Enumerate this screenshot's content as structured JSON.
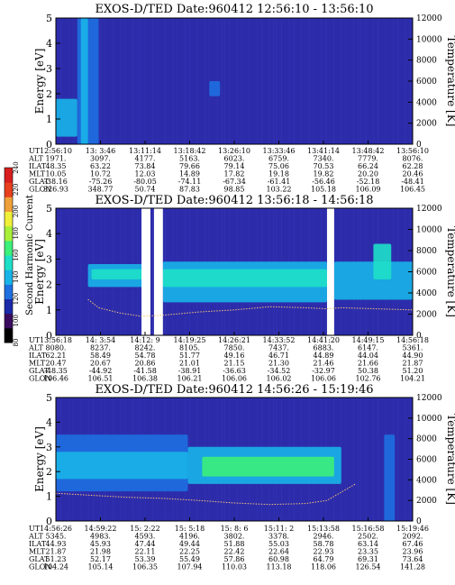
{
  "colors": {
    "background_spectrogram": "#2c2caa",
    "data_gap": "#ffffff",
    "temperature_trace": "#f4c07a",
    "colorbar_stops": [
      "#000000",
      "#3a0a5e",
      "#1a2aa8",
      "#1e6fe0",
      "#18b4e8",
      "#1ee0c8",
      "#3cf07a",
      "#a8f03a",
      "#f0f03a",
      "#f0a03a",
      "#e8401e",
      "#d81e1e"
    ]
  },
  "colorbar": {
    "label": "Second Harmonic Current",
    "ticks": [
      "80",
      "100",
      "120",
      "140",
      "160",
      "180",
      "200",
      "220",
      "240"
    ]
  },
  "chart_data": [
    {
      "type": "heatmap",
      "title": "EXOS-D/TED   Date:960412   12:56:10 - 13:56:10",
      "ylabel": "Energy [eV]",
      "y2label": "Temperature [K]",
      "ylim": [
        0,
        5
      ],
      "y2lim": [
        0,
        12000
      ],
      "yticks": [
        "0",
        "1",
        "2",
        "3",
        "4",
        "5"
      ],
      "y2ticks": [
        "0",
        "2000",
        "4000",
        "6000",
        "8000",
        "10000",
        "12000"
      ],
      "bands": [
        {
          "t0": 0.0,
          "t1": 0.06,
          "e0": 0.3,
          "e1": 1.8,
          "level": 5
        },
        {
          "t0": 0.06,
          "t1": 0.12,
          "e0": 0.0,
          "e1": 5.0,
          "level": 4
        },
        {
          "t0": 0.43,
          "t1": 0.46,
          "e0": 1.9,
          "e1": 2.5,
          "level": 4
        },
        {
          "t0": 0.07,
          "t1": 0.09,
          "e0": 0.0,
          "e1": 5.0,
          "level": 5
        }
      ],
      "gaps": [],
      "temperature": [],
      "rows": [
        {
          "name": "UT",
          "values": [
            "12:56:10",
            "13: 3:46",
            "13:11:14",
            "13:18:42",
            "13:26:10",
            "13:33:46",
            "13:41:14",
            "13:48:42",
            "13:56:10"
          ]
        },
        {
          "name": "ALT",
          "values": [
            "1971.",
            "3097.",
            "4177.",
            "5163.",
            "6023.",
            "6759.",
            "7340.",
            "7779.",
            "8076."
          ]
        },
        {
          "name": "ILAT",
          "values": [
            "48.35",
            "63.22",
            "73.84",
            "79.66",
            "79.14",
            "75.06",
            "70.53",
            "66.24",
            "62.28"
          ]
        },
        {
          "name": "MLT",
          "values": [
            "10.05",
            "10.72",
            "12.03",
            "14.89",
            "17.82",
            "19.18",
            "19.82",
            "20.20",
            "20.46"
          ]
        },
        {
          "name": "GLAT",
          "values": [
            "-38.16",
            "-75.26",
            "-80.05",
            "-74.11",
            "-67.34",
            "-61.41",
            "-56.46",
            "-52.18",
            "-48.41"
          ]
        },
        {
          "name": "GLON",
          "values": [
            "326.93",
            "348.77",
            "50.74",
            "87.83",
            "98.85",
            "103.22",
            "105.18",
            "106.09",
            "106.45"
          ]
        }
      ]
    },
    {
      "type": "heatmap",
      "title": "EXOS-D/TED   Date:960412   13:56:18 - 14:56:18",
      "ylabel": "Energy [eV]",
      "y2label": "Temperature [K]",
      "ylim": [
        0,
        5
      ],
      "y2lim": [
        0,
        12000
      ],
      "yticks": [
        "0",
        "1",
        "2",
        "3",
        "4",
        "5"
      ],
      "y2ticks": [
        "0",
        "2000",
        "4000",
        "6000",
        "8000",
        "10000",
        "12000"
      ],
      "bands": [
        {
          "t0": 0.09,
          "t1": 0.25,
          "e0": 1.9,
          "e1": 2.8,
          "level": 5
        },
        {
          "t0": 0.1,
          "t1": 0.25,
          "e0": 2.2,
          "e1": 2.6,
          "level": 6
        },
        {
          "t0": 0.3,
          "t1": 0.76,
          "e0": 1.3,
          "e1": 2.9,
          "level": 5
        },
        {
          "t0": 0.3,
          "t1": 0.76,
          "e0": 1.9,
          "e1": 2.6,
          "level": 6
        },
        {
          "t0": 0.78,
          "t1": 1.0,
          "e0": 1.4,
          "e1": 2.9,
          "level": 5
        },
        {
          "t0": 0.89,
          "t1": 0.94,
          "e0": 2.2,
          "e1": 3.6,
          "level": 6
        }
      ],
      "gaps": [
        [
          0.24,
          0.265
        ],
        [
          0.275,
          0.3
        ],
        [
          0.76,
          0.78
        ]
      ],
      "temperature": [
        [
          0.09,
          3400
        ],
        [
          0.12,
          2600
        ],
        [
          0.18,
          2100
        ],
        [
          0.24,
          1800
        ],
        [
          0.3,
          1900
        ],
        [
          0.4,
          2200
        ],
        [
          0.5,
          2400
        ],
        [
          0.6,
          2700
        ],
        [
          0.7,
          2600
        ],
        [
          0.76,
          2500
        ],
        [
          0.8,
          2600
        ],
        [
          0.9,
          2500
        ],
        [
          1.0,
          2400
        ]
      ],
      "rows": [
        {
          "name": "UT",
          "values": [
            "13:56:18",
            "14: 3:54",
            "14:12: 9",
            "14:19:25",
            "14:26:21",
            "14:33:52",
            "14:41:20",
            "14:49:15",
            "14:56:18"
          ]
        },
        {
          "name": "ALT",
          "values": [
            "8080.",
            "8237.",
            "8242.",
            "8105.",
            "7850.",
            "7437.",
            "6883.",
            "6147.",
            "5361."
          ]
        },
        {
          "name": "ILAT",
          "values": [
            "62.21",
            "58.49",
            "54.78",
            "51.77",
            "49.16",
            "46.71",
            "44.89",
            "44.04",
            "44.90"
          ]
        },
        {
          "name": "MLT",
          "values": [
            "20.47",
            "20.67",
            "20.86",
            "21.01",
            "21.15",
            "21.30",
            "21.46",
            "21.66",
            "21.87"
          ]
        },
        {
          "name": "GLAT",
          "values": [
            "-48.35",
            "-44.92",
            "-41.58",
            "-38.91",
            "-36.63",
            "-34.52",
            "-32.97",
            "50.38",
            "51.20"
          ]
        },
        {
          "name": "GLON",
          "values": [
            "106.46",
            "106.51",
            "106.38",
            "106.21",
            "106.06",
            "106.02",
            "106.06",
            "102.76",
            "104.21"
          ]
        }
      ]
    },
    {
      "type": "heatmap",
      "title": "EXOS-D/TED   Date:960412   14:56:26 - 15:19:46",
      "ylabel": "Energy [eV]",
      "y2label": "Temperature [K]",
      "ylim": [
        0,
        5
      ],
      "y2lim": [
        0,
        12000
      ],
      "yticks": [
        "0",
        "1",
        "2",
        "3",
        "4",
        "5"
      ],
      "y2ticks": [
        "0",
        "2000",
        "4000",
        "6000",
        "8000",
        "10000",
        "12000"
      ],
      "bands": [
        {
          "t0": 0.0,
          "t1": 0.37,
          "e0": 1.2,
          "e1": 3.5,
          "level": 4
        },
        {
          "t0": 0.0,
          "t1": 0.37,
          "e0": 1.7,
          "e1": 2.8,
          "level": 5
        },
        {
          "t0": 0.37,
          "t1": 0.8,
          "e0": 1.5,
          "e1": 3.0,
          "level": 5
        },
        {
          "t0": 0.41,
          "t1": 0.78,
          "e0": 1.8,
          "e1": 2.6,
          "level": 7
        },
        {
          "t0": 0.92,
          "t1": 0.95,
          "e0": 0.0,
          "e1": 3.5,
          "level": 4
        }
      ],
      "gaps": [],
      "temperature": [
        [
          0.0,
          2700
        ],
        [
          0.1,
          2500
        ],
        [
          0.2,
          2300
        ],
        [
          0.3,
          2200
        ],
        [
          0.4,
          2000
        ],
        [
          0.5,
          1750
        ],
        [
          0.6,
          1600
        ],
        [
          0.7,
          1700
        ],
        [
          0.76,
          2000
        ],
        [
          0.8,
          2800
        ],
        [
          0.84,
          3600
        ]
      ],
      "rows": [
        {
          "name": "UT",
          "values": [
            "14:56:26",
            "14:59:22",
            "15: 2:22",
            "15: 5:18",
            "15: 8: 6",
            "15:11: 2",
            "15:13:58",
            "15:16:58",
            "15:19:46"
          ]
        },
        {
          "name": "ALT",
          "values": [
            "5345.",
            "4983.",
            "4593.",
            "4196.",
            "3802.",
            "3378.",
            "2946.",
            "2502.",
            "2092."
          ]
        },
        {
          "name": "ILAT",
          "values": [
            "44.93",
            "45.93",
            "47.44",
            "49.44",
            "51.88",
            "55.03",
            "58.78",
            "63.14",
            "67.46"
          ]
        },
        {
          "name": "MLT",
          "values": [
            "21.87",
            "21.98",
            "22.11",
            "22.25",
            "22.42",
            "22.64",
            "22.93",
            "23.35",
            "23.96"
          ]
        },
        {
          "name": "GLAT",
          "values": [
            "51.23",
            "52.17",
            "53.39",
            "55.49",
            "57.86",
            "60.98",
            "64.79",
            "69.31",
            "73.64"
          ]
        },
        {
          "name": "GLON",
          "values": [
            "104.24",
            "105.14",
            "106.35",
            "107.94",
            "110.03",
            "113.18",
            "118.06",
            "126.54",
            "141.28"
          ]
        }
      ]
    }
  ]
}
